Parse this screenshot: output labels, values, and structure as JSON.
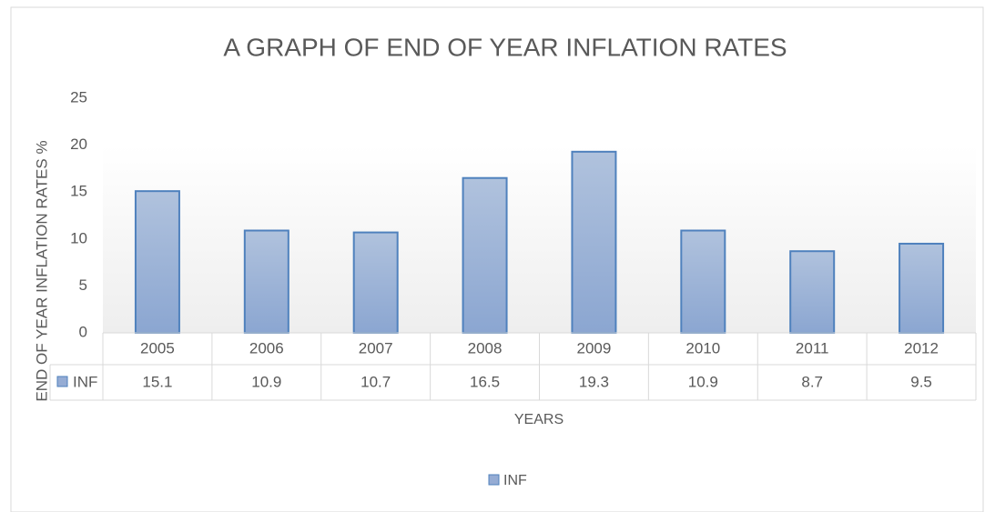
{
  "chart_data": {
    "type": "bar",
    "title": "A GRAPH OF END OF YEAR INFLATION RATES",
    "y_label": "END OF YEAR INFLATION RATES %",
    "x_label": "YEARS",
    "categories": [
      "2005",
      "2006",
      "2007",
      "2008",
      "2009",
      "2010",
      "2011",
      "2012"
    ],
    "series": [
      {
        "name": "INF",
        "color": "#95acd4",
        "values": [
          15.1,
          10.9,
          10.7,
          16.5,
          19.3,
          10.9,
          8.7,
          9.5
        ]
      }
    ],
    "ylim": [
      0,
      25
    ],
    "yticks": [
      0,
      5,
      10,
      15,
      20,
      25
    ],
    "grid": false,
    "legend": "bottom",
    "data_table": true
  }
}
